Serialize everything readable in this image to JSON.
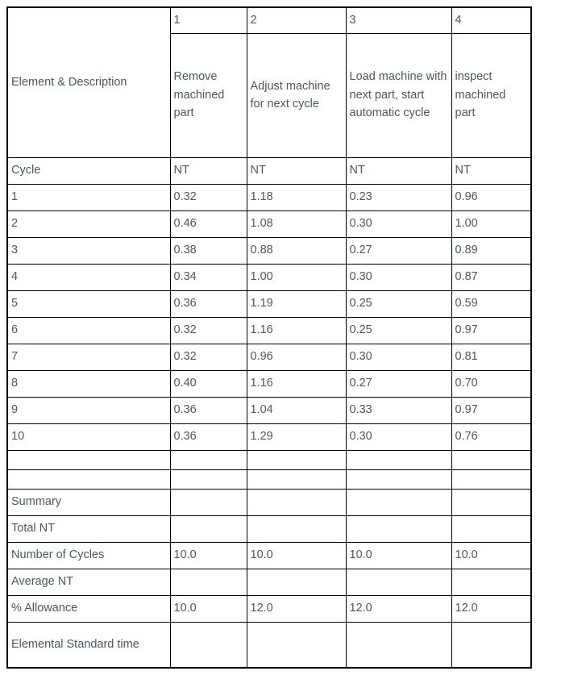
{
  "page": {
    "background_color": "#ffffff",
    "text_color": "#4c5860",
    "border_color": "#000000"
  },
  "table": {
    "corner_header": "Element & Description",
    "columns": [
      {
        "number": "1",
        "description": "Remove machined part"
      },
      {
        "number": "2",
        "description": "Adjust machine for next cycle"
      },
      {
        "number": "3",
        "description": "Load machine with next part, start automatic cycle"
      },
      {
        "number": "4",
        "description": "inspect machined part"
      }
    ],
    "cycle_header_row": {
      "label": "Cycle",
      "values": [
        "NT",
        "NT",
        "NT",
        "NT"
      ]
    },
    "cycle_rows": [
      {
        "label": "1",
        "values": [
          "0.32",
          "1.18",
          "0.23",
          "0.96"
        ]
      },
      {
        "label": "2",
        "values": [
          "0.46",
          "1.08",
          "0.30",
          "1.00"
        ]
      },
      {
        "label": "3",
        "values": [
          "0.38",
          "0.88",
          "0.27",
          "0.89"
        ]
      },
      {
        "label": "4",
        "values": [
          "0.34",
          "1.00",
          "0.30",
          "0.87"
        ]
      },
      {
        "label": "5",
        "values": [
          "0.36",
          "1.19",
          "0.25",
          "0.59"
        ]
      },
      {
        "label": "6",
        "values": [
          "0.32",
          "1.16",
          "0.25",
          "0.97"
        ]
      },
      {
        "label": "7",
        "values": [
          "0.32",
          "0.96",
          "0.30",
          "0.81"
        ]
      },
      {
        "label": "8",
        "values": [
          "0.40",
          "1.16",
          "0.27",
          "0.70"
        ]
      },
      {
        "label": "9",
        "values": [
          "0.36",
          "1.04",
          "0.33",
          "0.97"
        ]
      },
      {
        "label": "10",
        "values": [
          "0.36",
          "1.29",
          "0.30",
          "0.76"
        ]
      }
    ],
    "empty_row_count": 2,
    "summary_rows": [
      {
        "label": "Summary",
        "values": [
          "",
          "",
          "",
          ""
        ]
      },
      {
        "label": "Total NT",
        "values": [
          "",
          "",
          "",
          ""
        ]
      },
      {
        "label": "Number of Cycles",
        "values": [
          "10.0",
          "10.0",
          "10.0",
          "10.0"
        ]
      },
      {
        "label": "Average NT",
        "values": [
          "",
          "",
          "",
          ""
        ]
      },
      {
        "label": "% Allowance",
        "values": [
          "10.0",
          "12.0",
          "12.0",
          "12.0"
        ]
      },
      {
        "label": "Elemental Standard time",
        "values": [
          "",
          "",
          "",
          ""
        ]
      }
    ]
  }
}
